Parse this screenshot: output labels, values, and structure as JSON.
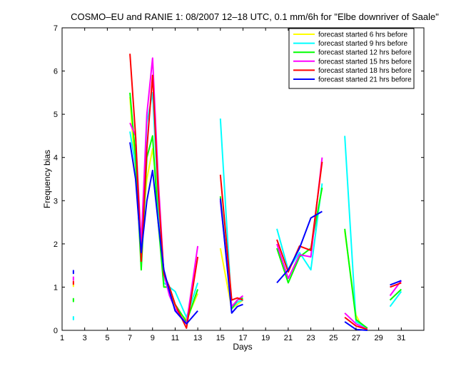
{
  "chart_data": {
    "type": "line",
    "title": "COSMO–EU and RANIE 1: 08/2007 12–18 UTC, 0.1 mm/6h for \"Elbe downriver of Saale\"",
    "xlabel": "Days",
    "ylabel": "Frequency bias",
    "xlim": [
      1,
      33
    ],
    "ylim": [
      0,
      7
    ],
    "xticks": [
      "1",
      "3",
      "5",
      "7",
      "9",
      "11",
      "13",
      "15",
      "17",
      "19",
      "21",
      "23",
      "25",
      "27",
      "29",
      "31"
    ],
    "yticks": [
      "0",
      "1",
      "2",
      "3",
      "4",
      "5",
      "6",
      "7"
    ],
    "grid": false,
    "legend_position": "top-right",
    "series": [
      {
        "name": "forecast started 6 hrs before",
        "color": "#ffff00",
        "segments": [
          [
            [
              2,
              1.05
            ]
          ],
          [
            [
              7,
              5.4
            ],
            [
              7.5,
              3.5
            ],
            [
              8,
              2.1
            ],
            [
              8.5,
              3.5
            ],
            [
              9,
              4.2
            ],
            [
              9.5,
              3.0
            ],
            [
              10,
              1.2
            ],
            [
              10.5,
              1.0
            ],
            [
              11,
              0.5
            ],
            [
              12,
              0.25
            ],
            [
              13,
              0.85
            ]
          ],
          [
            [
              15,
              1.9
            ],
            [
              16,
              0.5
            ],
            [
              16.5,
              0.6
            ],
            [
              17,
              0.7
            ]
          ],
          [
            [
              26,
              2.3
            ],
            [
              27,
              0.35
            ],
            [
              27.5,
              0.1
            ],
            [
              28,
              0.05
            ]
          ]
        ]
      },
      {
        "name": "forecast started 9 hrs before",
        "color": "#00ffff",
        "segments": [
          [
            [
              2,
              0.28
            ]
          ],
          [
            [
              7,
              4.6
            ],
            [
              7.5,
              3.8
            ],
            [
              8,
              2.0
            ],
            [
              8.5,
              4.8
            ],
            [
              9,
              5.5
            ],
            [
              9.5,
              3.0
            ],
            [
              10,
              1.1
            ],
            [
              10.5,
              1.0
            ],
            [
              11,
              0.9
            ],
            [
              12,
              0.3
            ],
            [
              13,
              1.1
            ]
          ],
          [
            [
              15,
              4.9
            ],
            [
              16,
              0.5
            ],
            [
              16.5,
              0.65
            ],
            [
              17,
              0.7
            ]
          ],
          [
            [
              20,
              2.35
            ],
            [
              21,
              1.4
            ],
            [
              22,
              1.8
            ],
            [
              23,
              1.4
            ],
            [
              24,
              3.4
            ]
          ],
          [
            [
              26,
              4.5
            ],
            [
              27,
              0.2
            ],
            [
              28,
              0.05
            ]
          ],
          [
            [
              30,
              0.55
            ],
            [
              31,
              0.9
            ]
          ]
        ]
      },
      {
        "name": "forecast started 12 hrs before",
        "color": "#00ff00",
        "segments": [
          [
            [
              2,
              0.7
            ]
          ],
          [
            [
              7,
              5.5
            ],
            [
              7.5,
              4.0
            ],
            [
              8,
              1.4
            ],
            [
              8.5,
              4.0
            ],
            [
              9,
              4.5
            ],
            [
              9.5,
              2.5
            ],
            [
              10,
              1.0
            ],
            [
              10.5,
              1.0
            ],
            [
              11,
              0.6
            ],
            [
              12,
              0.2
            ],
            [
              13,
              0.95
            ]
          ],
          [
            [
              15,
              3.1
            ],
            [
              16,
              0.5
            ],
            [
              16.5,
              0.7
            ],
            [
              17,
              0.75
            ]
          ],
          [
            [
              20,
              1.9
            ],
            [
              21,
              1.1
            ],
            [
              22,
              1.7
            ],
            [
              23,
              1.9
            ],
            [
              24,
              3.3
            ]
          ],
          [
            [
              26,
              2.35
            ],
            [
              27,
              0.25
            ],
            [
              28,
              0.05
            ]
          ],
          [
            [
              30,
              0.7
            ],
            [
              31,
              0.95
            ]
          ]
        ]
      },
      {
        "name": "forecast started 15 hrs before",
        "color": "#ff00ff",
        "segments": [
          [
            [
              2,
              1.2
            ]
          ],
          [
            [
              7,
              4.8
            ],
            [
              7.5,
              4.5
            ],
            [
              8,
              2.0
            ],
            [
              8.5,
              5.0
            ],
            [
              9,
              6.3
            ],
            [
              9.5,
              3.5
            ],
            [
              10,
              1.3
            ],
            [
              10.5,
              0.8
            ],
            [
              11,
              0.5
            ],
            [
              12,
              0.15
            ],
            [
              13,
              1.95
            ]
          ],
          [
            [
              15,
              3.0
            ],
            [
              16,
              0.55
            ],
            [
              16.5,
              0.7
            ],
            [
              17,
              0.8
            ]
          ],
          [
            [
              20,
              2.0
            ],
            [
              21,
              1.2
            ],
            [
              22,
              1.75
            ],
            [
              23,
              1.7
            ],
            [
              24,
              4.0
            ]
          ],
          [
            [
              26,
              0.4
            ],
            [
              27,
              0.15
            ],
            [
              28,
              0.02
            ]
          ],
          [
            [
              30,
              0.8
            ],
            [
              31,
              1.15
            ]
          ]
        ]
      },
      {
        "name": "forecast started 18 hrs before",
        "color": "#ff0000",
        "segments": [
          [
            [
              2,
              1.1
            ]
          ],
          [
            [
              7,
              6.4
            ],
            [
              7.5,
              4.5
            ],
            [
              8,
              1.6
            ],
            [
              8.5,
              4.2
            ],
            [
              9,
              5.9
            ],
            [
              9.5,
              3.2
            ],
            [
              10,
              1.3
            ],
            [
              10.5,
              1.0
            ],
            [
              11,
              0.6
            ],
            [
              12,
              0.05
            ],
            [
              13,
              1.7
            ]
          ],
          [
            [
              15,
              3.6
            ],
            [
              16,
              0.7
            ],
            [
              16.5,
              0.75
            ],
            [
              17,
              0.7
            ]
          ],
          [
            [
              20,
              2.1
            ],
            [
              21,
              1.35
            ],
            [
              22,
              1.95
            ],
            [
              23,
              1.85
            ],
            [
              24,
              3.9
            ]
          ],
          [
            [
              26,
              0.3
            ],
            [
              27,
              0.1
            ],
            [
              28,
              0.02
            ]
          ],
          [
            [
              30,
              1.0
            ],
            [
              31,
              1.1
            ]
          ]
        ]
      },
      {
        "name": "forecast started 21 hrs before",
        "color": "#0000ff",
        "segments": [
          [
            [
              2,
              1.35
            ]
          ],
          [
            [
              7,
              4.35
            ],
            [
              7.5,
              3.5
            ],
            [
              8,
              1.8
            ],
            [
              8.5,
              3.0
            ],
            [
              9,
              3.7
            ],
            [
              9.5,
              2.5
            ],
            [
              10,
              1.4
            ],
            [
              10.5,
              0.9
            ],
            [
              11,
              0.45
            ],
            [
              12,
              0.15
            ],
            [
              13,
              0.45
            ]
          ],
          [
            [
              15,
              3.05
            ],
            [
              16,
              0.4
            ],
            [
              16.5,
              0.55
            ],
            [
              17,
              0.6
            ]
          ],
          [
            [
              20,
              1.1
            ],
            [
              21,
              1.4
            ],
            [
              22,
              1.9
            ],
            [
              23,
              2.6
            ],
            [
              24,
              2.75
            ]
          ],
          [
            [
              26,
              0.2
            ],
            [
              27,
              0.02
            ],
            [
              28,
              0.0
            ]
          ],
          [
            [
              30,
              1.05
            ],
            [
              31,
              1.15
            ]
          ]
        ]
      }
    ]
  }
}
